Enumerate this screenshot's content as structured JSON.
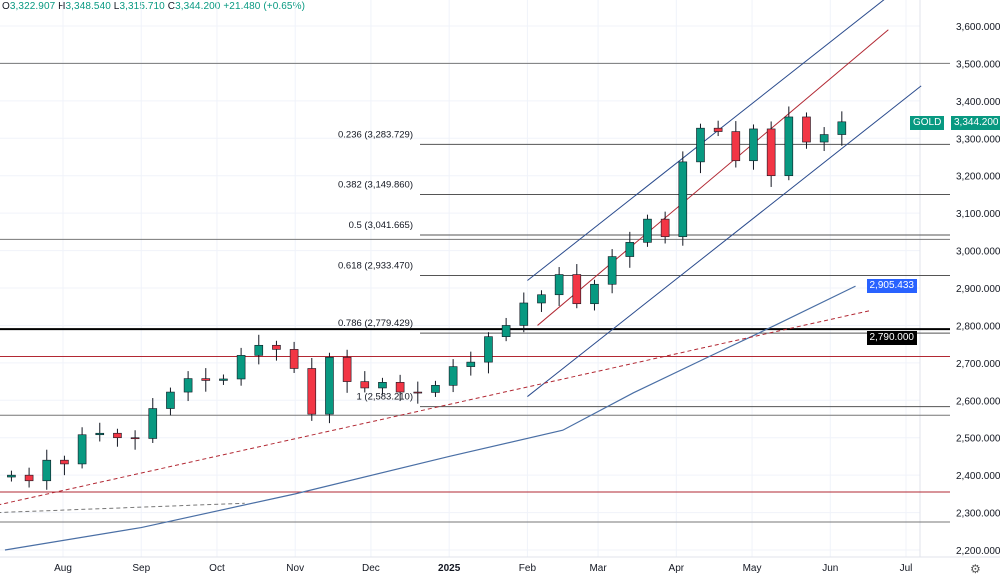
{
  "header": {
    "o_label": "O",
    "o": "3,322.907",
    "h_label": "H",
    "h": "3,348.540",
    "l_label": "L",
    "l": "3,315.710",
    "c_label": "C",
    "c": "3,344.200",
    "change": "+21.480 (+0.65%)"
  },
  "tags": {
    "symbol": "GOLD",
    "price": "3,344.200",
    "ma": "2,905.433",
    "level": "2,790.000"
  },
  "colors": {
    "up": "#089981",
    "down": "#f23645",
    "candle": "#131722",
    "channel": "#2a4b8d",
    "red": "#b22833",
    "ma": "#4a6fa5",
    "accent_up": "#089981",
    "ma_tag": "#2962ff"
  },
  "icons": [
    "settings-gear-icon"
  ],
  "chart_data": {
    "type": "candlestick",
    "title": "GOLD",
    "ylim": [
      2200,
      3600
    ],
    "yticks": [
      "3,600.000",
      "3,500.000",
      "3,400.000",
      "3,300.000",
      "3,200.000",
      "3,100.000",
      "3,000.000",
      "2,900.000",
      "2,800.000",
      "2,700.000",
      "2,600.000",
      "2,500.000",
      "2,400.000",
      "2,300.000",
      "2,200.000"
    ],
    "ytick_values": [
      3600,
      3500,
      3400,
      3300,
      3200,
      3100,
      3000,
      2900,
      2800,
      2700,
      2600,
      2500,
      2400,
      2300,
      2200
    ],
    "xticks": [
      {
        "label": "Aug",
        "date": "2024-08-01"
      },
      {
        "label": "Sep",
        "date": "2024-09-01"
      },
      {
        "label": "Oct",
        "date": "2024-10-01"
      },
      {
        "label": "Nov",
        "date": "2024-11-01"
      },
      {
        "label": "Dec",
        "date": "2024-12-01"
      },
      {
        "label": "2025",
        "date": "2025-01-01"
      },
      {
        "label": "Feb",
        "date": "2025-02-01"
      },
      {
        "label": "Mar",
        "date": "2025-03-01"
      },
      {
        "label": "Apr",
        "date": "2025-04-01"
      },
      {
        "label": "May",
        "date": "2025-05-01"
      },
      {
        "label": "Jun",
        "date": "2025-06-01"
      },
      {
        "label": "Jul",
        "date": "2025-07-01"
      }
    ],
    "candle_start": "2024-07-08",
    "candle_step_days": 7,
    "start_open": 2395,
    "closes": [
      2400,
      2385,
      2440,
      2430,
      2508,
      2512,
      2500,
      2498,
      2578,
      2622,
      2658,
      2653,
      2657,
      2720,
      2747,
      2736,
      2685,
      2563,
      2715,
      2650,
      2633,
      2648,
      2622,
      2621,
      2640,
      2690,
      2702,
      2770,
      2800,
      2860,
      2882,
      2936,
      2858,
      2910,
      2984,
      3022,
      3084,
      3037,
      3237,
      3327,
      3318,
      3240,
      3325,
      3200,
      3357,
      3290,
      3310,
      3344
    ],
    "fib_levels": [
      {
        "label": "0.236 (3,283.729)",
        "price": 3283.729
      },
      {
        "label": "0.382 (3,149.860)",
        "price": 3149.86
      },
      {
        "label": "0.5 (3,041.665)",
        "price": 3041.665
      },
      {
        "label": "0.618 (2,933.470)",
        "price": 2933.47
      },
      {
        "label": "0.786 (2,779.429)",
        "price": 2779.429
      },
      {
        "label": "1 (2,583.210)",
        "price": 2583.21
      }
    ],
    "horizontal_lines": [
      {
        "price": 3500,
        "color": "gray"
      },
      {
        "price": 3030,
        "color": "gray"
      },
      {
        "price": 2790,
        "color": "black"
      },
      {
        "price": 2717,
        "color": "red"
      },
      {
        "price": 2560,
        "color": "gray"
      },
      {
        "price": 2355,
        "color": "red"
      },
      {
        "price": 2275,
        "color": "gray"
      }
    ],
    "trend_lines": [
      {
        "name": "channel-upper",
        "from": [
          "2025-02-01",
          2920
        ],
        "to": [
          "2025-06-26",
          3690
        ],
        "color": "channel"
      },
      {
        "name": "channel-lower",
        "from": [
          "2025-02-01",
          2610
        ],
        "to": [
          "2025-07-07",
          3440
        ],
        "color": "channel"
      },
      {
        "name": "channel-mid",
        "from": [
          "2025-02-05",
          2800
        ],
        "to": [
          "2025-06-24",
          3590
        ],
        "color": "red"
      },
      {
        "name": "trend-dashed-red",
        "from": [
          "2024-07-06",
          2320
        ],
        "to": [
          "2025-06-17",
          2840
        ],
        "color": "red",
        "dashed": true
      },
      {
        "name": "trend-dashed-gray",
        "from": [
          "2024-07-06",
          2300
        ],
        "to": [
          "2024-10-12",
          2325
        ],
        "color": "gray",
        "dashed": true
      }
    ],
    "moving_average": [
      [
        "2024-07-09",
        2200
      ],
      [
        "2024-09-01",
        2260
      ],
      [
        "2024-11-01",
        2350
      ],
      [
        "2025-01-01",
        2450
      ],
      [
        "2025-02-15",
        2520
      ],
      [
        "2025-03-15",
        2620
      ],
      [
        "2025-04-15",
        2720
      ],
      [
        "2025-05-10",
        2800
      ],
      [
        "2025-06-11",
        2905
      ]
    ]
  }
}
